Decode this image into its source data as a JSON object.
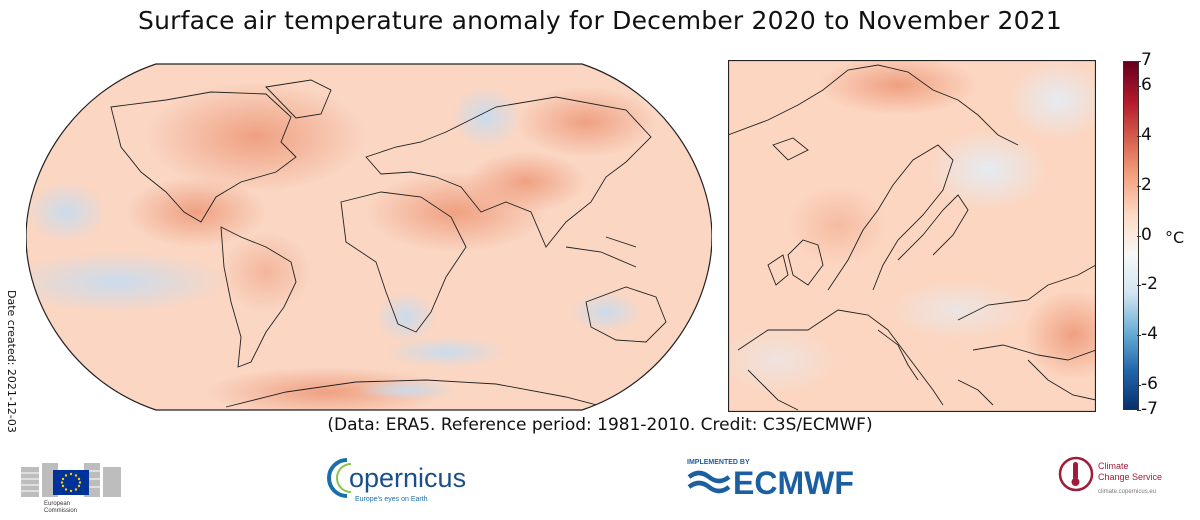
{
  "title": "Surface air temperature anomaly for December 2020 to November 2021",
  "date_created": "Date created: 2021-12-03",
  "credit": "(Data: ERA5.  Reference period: 1981-2010.  Credit: C3S/ECMWF)",
  "colorbar": {
    "unit": "°C",
    "ticks": [
      "7",
      "6",
      "4",
      "2",
      "0",
      "-2",
      "-4",
      "-6",
      "-7"
    ],
    "tick_values": [
      7,
      6,
      4,
      2,
      0,
      -2,
      -4,
      -6,
      -7
    ],
    "min": -7,
    "max": 7,
    "colors": [
      "#08306b",
      "#2166ac",
      "#6baed6",
      "#d1e5f0",
      "#f7f7f7",
      "#fddbc7",
      "#f4a582",
      "#d6604d",
      "#b2182b",
      "#67001f"
    ]
  },
  "maps": {
    "world": {
      "projection": "Robinson",
      "background_color": "#fad9c6"
    },
    "europe": {
      "region": "Europe",
      "background_color": "#fcd7c2"
    }
  },
  "logos": {
    "ec": {
      "line1": "European",
      "line2": "Commission"
    },
    "copernicus": {
      "name": "opernicus",
      "tagline": "Europe's eyes on Earth"
    },
    "ecmwf": {
      "implemented_by": "IMPLEMENTED BY",
      "name": "ECMWF"
    },
    "c3s": {
      "line1": "Climate",
      "line2": "Change Service",
      "line3": "climate.copernicus.eu"
    }
  }
}
